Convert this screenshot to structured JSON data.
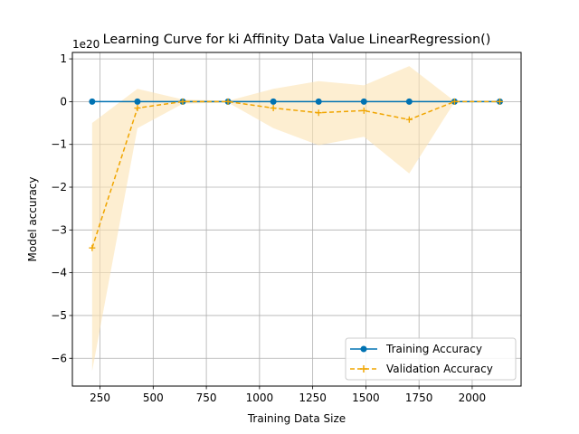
{
  "chart_data": {
    "type": "line",
    "title": "Learning Curve for ki Affinity Data Value LinearRegression()",
    "xlabel": "Training Data Size",
    "ylabel": "Model accuracy",
    "y_offset_label": "1e20",
    "xlim": [
      120,
      2230
    ],
    "ylim": [
      -6.65,
      1.15
    ],
    "x_ticks": [
      250,
      500,
      750,
      1000,
      1250,
      1500,
      1750,
      2000
    ],
    "x_tick_labels": [
      "250",
      "500",
      "750",
      "1000",
      "1250",
      "1500",
      "1750",
      "2000"
    ],
    "y_ticks": [
      1,
      0,
      -1,
      -2,
      -3,
      -4,
      -5,
      -6
    ],
    "y_tick_labels": [
      "1",
      "0",
      "−1",
      "−2",
      "−3",
      "−4",
      "−5",
      "−6"
    ],
    "grid": true,
    "legend_position": "lower-right",
    "x": [
      213,
      426,
      639,
      852,
      1065,
      1278,
      1491,
      1704,
      1917,
      2130
    ],
    "series": [
      {
        "name": "Training Accuracy",
        "color": "#0072b2",
        "marker": "circle",
        "line_style": "solid",
        "values": [
          0,
          0,
          0,
          0,
          0,
          0,
          0,
          0,
          0,
          0
        ],
        "band_lower": [
          0,
          0,
          0,
          0,
          0,
          0,
          0,
          0,
          0,
          0
        ],
        "band_upper": [
          0,
          0,
          0,
          0,
          0,
          0,
          0,
          0,
          0,
          0
        ]
      },
      {
        "name": "Validation Accuracy",
        "color": "#f0a500",
        "band_color": "#fbe3b3",
        "marker": "plus",
        "line_style": "dashed",
        "values": [
          -3.42,
          -0.15,
          0.0,
          0.0,
          -0.15,
          -0.26,
          -0.21,
          -0.42,
          0.0,
          0.0
        ],
        "band_lower": [
          -6.3,
          -0.62,
          -0.05,
          -0.02,
          -0.62,
          -1.02,
          -0.82,
          -1.68,
          -0.01,
          -0.01
        ],
        "band_upper": [
          -0.5,
          0.3,
          0.05,
          0.02,
          0.3,
          0.48,
          0.38,
          0.83,
          0.01,
          0.01
        ]
      }
    ]
  }
}
